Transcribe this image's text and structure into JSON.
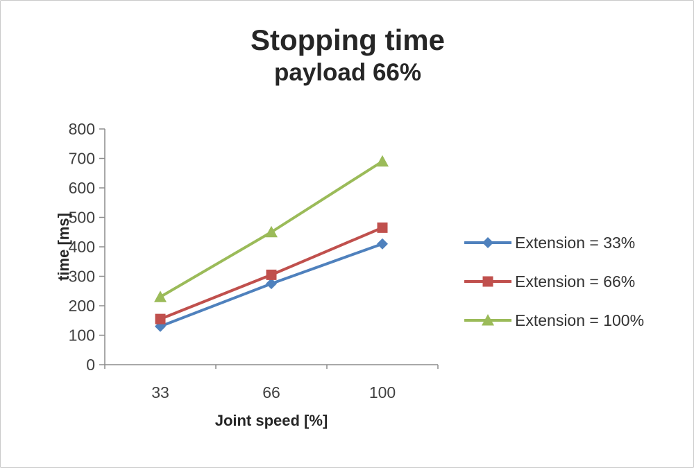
{
  "chart_data": {
    "type": "line",
    "title": "Stopping time",
    "subtitle": "payload 66%",
    "xlabel": "Joint speed [%]",
    "ylabel": "time [ms]",
    "categories": [
      "33",
      "66",
      "100"
    ],
    "ylim": [
      0,
      800
    ],
    "ytick_step": 100,
    "grid": false,
    "legend_position": "right",
    "series": [
      {
        "name": "Extension = 33%",
        "marker": "diamond",
        "color": "#4f81bd",
        "values": [
          130,
          275,
          410
        ]
      },
      {
        "name": "Extension = 66%",
        "marker": "square",
        "color": "#c0504d",
        "values": [
          155,
          305,
          465
        ]
      },
      {
        "name": "Extension = 100%",
        "marker": "triangle",
        "color": "#9bbb59",
        "values": [
          230,
          450,
          690
        ]
      }
    ]
  },
  "colors": {
    "axis": "#8c8c8c",
    "tick_label": "#404040",
    "title": "#262626"
  }
}
